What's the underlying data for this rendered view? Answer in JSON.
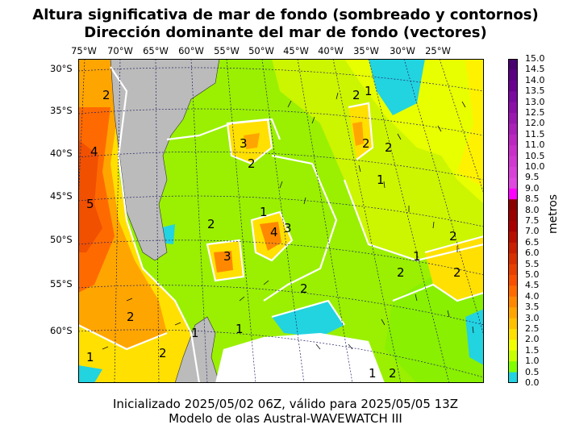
{
  "title_line1": "Altura significativa de mar de fondo (sombreado y contornos)",
  "title_line2": "Dirección dominante del mar de fondo (vectores)",
  "footer_line1": "Inicializado 2025/05/02 06Z, válido para 2025/05/05 13Z",
  "footer_line2": "Modelo de olas Austral-WAVEWATCH III",
  "longitude_labels": [
    "75°W",
    "70°W",
    "65°W",
    "60°W",
    "55°W",
    "50°W",
    "45°W",
    "40°W",
    "35°W",
    "30°W",
    "25°W"
  ],
  "latitude_labels": [
    "30°S",
    "35°S",
    "40°S",
    "45°S",
    "50°S",
    "55°S",
    "60°S"
  ],
  "colorbar": {
    "unit_label": "metros",
    "ticks": [
      "15.0",
      "14.5",
      "14.0",
      "13.5",
      "13.0",
      "12.5",
      "12.0",
      "11.5",
      "11.0",
      "10.5",
      "10.0",
      "9.5",
      "9.0",
      "8.5",
      "8.0",
      "7.5",
      "7.0",
      "6.5",
      "6.0",
      "5.5",
      "5.0",
      "4.5",
      "4.0",
      "3.5",
      "3.0",
      "2.5",
      "2.0",
      "1.5",
      "1.0",
      "0.5",
      "0.0"
    ],
    "colors": [
      "#4b0070",
      "#5a0080",
      "#6a0090",
      "#7a0aa0",
      "#8a10a8",
      "#9a18b0",
      "#aa20b8",
      "#ba28c0",
      "#c830c8",
      "#d038d0",
      "#d840d8",
      "#e048e0",
      "#ff00ff",
      "#8b0000",
      "#990000",
      "#a80000",
      "#b81000",
      "#c82000",
      "#d83000",
      "#e84000",
      "#f85000",
      "#ff6a00",
      "#ff8800",
      "#ffa500",
      "#ffc000",
      "#ffe000",
      "#f0ff00",
      "#c8ff00",
      "#80ff00",
      "#22d3e0"
    ]
  },
  "contour_labels": [
    "1",
    "2",
    "3",
    "4",
    "5"
  ],
  "colors": {
    "land": "#bbbbbb",
    "ice": "#ffffff",
    "contour": "#ffffff"
  }
}
